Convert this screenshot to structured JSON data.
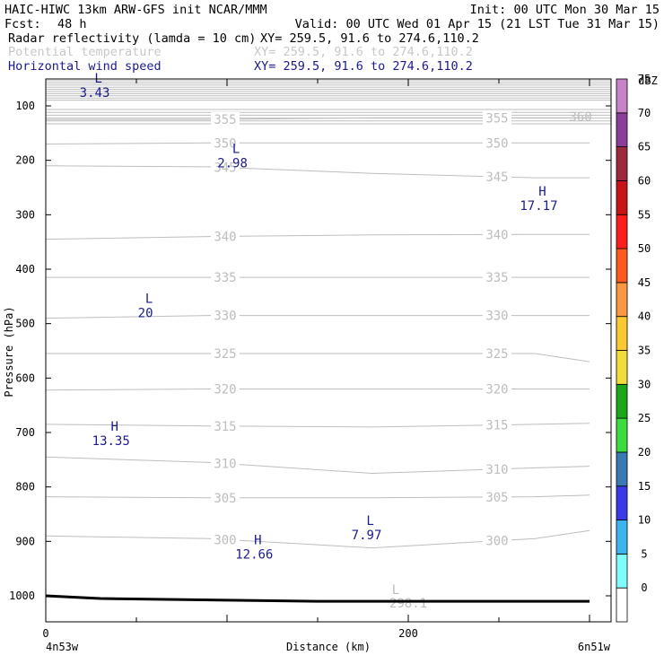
{
  "header": {
    "title_left": "HAIC-HIWC 13km ARW-GFS init   NCAR/MMM",
    "init": "Init: 00 UTC Mon 30 Mar 15",
    "fcst_label": "Fcst:",
    "fcst_value": "48 h",
    "valid": "Valid: 00 UTC Wed 01 Apr 15 (21 LST Tue 31 Mar 15)",
    "fields": [
      {
        "name": "Radar reflectivity (lamda = 10 cm)",
        "xy": "XY= 259.5, 91.6 to 274.6,110.2",
        "color": "#000000"
      },
      {
        "name": "Potential temperature",
        "xy": "XY= 259.5, 91.6 to 274.6,110.2",
        "color": "#c8c8c8"
      },
      {
        "name": "Horizontal wind speed",
        "xy": "XY= 259.5, 91.6 to 274.6,110.2",
        "color": "#1a1a8c"
      }
    ]
  },
  "axes": {
    "ylabel": "Pressure (hPa)",
    "xlabel": "Distance (km)",
    "x_left_label": "4n53w",
    "x_right_label": "6n51w",
    "y_ticks": [
      100,
      200,
      300,
      400,
      500,
      600,
      700,
      800,
      900,
      1000
    ],
    "x_ticks": [
      0,
      200
    ]
  },
  "colorbar": {
    "title": "dBZ",
    "levels": [
      0,
      5,
      10,
      15,
      20,
      25,
      30,
      35,
      40,
      45,
      50,
      55,
      60,
      65,
      70,
      75
    ],
    "colors": [
      "#ffffff",
      "#7ffcfc",
      "#3cb4f0",
      "#3a3ae6",
      "#3a7ab4",
      "#3cdc3c",
      "#1aa81a",
      "#f0dc3c",
      "#fcc832",
      "#fc9640",
      "#fc5a1e",
      "#fc1e1e",
      "#c81414",
      "#a0283c",
      "#8c3c9a",
      "#c882c8"
    ]
  },
  "chart_data": {
    "type": "line",
    "xlim": [
      0,
      300
    ],
    "ylim": [
      1050,
      50
    ],
    "isentropes": [
      {
        "label": "355",
        "x": [
          0,
          90,
          180,
          270,
          300
        ],
        "y": [
          125,
          125,
          122,
          122,
          122
        ]
      },
      {
        "label": "350",
        "x": [
          0,
          90,
          180,
          270,
          300
        ],
        "y": [
          170,
          168,
          168,
          168,
          168
        ]
      },
      {
        "label": "345",
        "x": [
          0,
          90,
          180,
          270,
          300
        ],
        "y": [
          210,
          212,
          224,
          232,
          232
        ]
      },
      {
        "label": "340",
        "x": [
          0,
          90,
          180,
          270,
          300
        ],
        "y": [
          345,
          340,
          337,
          336,
          336
        ]
      },
      {
        "label": "335",
        "x": [
          0,
          90,
          180,
          270,
          300
        ],
        "y": [
          415,
          415,
          415,
          415,
          415
        ]
      },
      {
        "label": "330",
        "x": [
          0,
          90,
          180,
          270,
          300
        ],
        "y": [
          490,
          485,
          485,
          485,
          485
        ]
      },
      {
        "label": "325",
        "x": [
          0,
          90,
          180,
          270,
          300
        ],
        "y": [
          555,
          555,
          555,
          555,
          570
        ]
      },
      {
        "label": "320",
        "x": [
          0,
          90,
          180,
          270,
          300
        ],
        "y": [
          622,
          620,
          620,
          620,
          620
        ]
      },
      {
        "label": "315",
        "x": [
          0,
          90,
          180,
          270,
          300
        ],
        "y": [
          685,
          688,
          690,
          685,
          683
        ]
      },
      {
        "label": "310",
        "x": [
          0,
          90,
          180,
          270,
          300
        ],
        "y": [
          745,
          755,
          775,
          765,
          762
        ]
      },
      {
        "label": "305",
        "x": [
          0,
          90,
          180,
          270,
          300
        ],
        "y": [
          818,
          820,
          820,
          818,
          815
        ]
      },
      {
        "label": "300",
        "x": [
          0,
          90,
          180,
          270,
          300
        ],
        "y": [
          890,
          895,
          912,
          895,
          880
        ]
      }
    ],
    "wind_extrema": [
      {
        "kind": "L",
        "value": "3.43",
        "x": 27,
        "y": 70
      },
      {
        "kind": "L",
        "value": "2.98",
        "x": 103,
        "y": 200
      },
      {
        "kind": "H",
        "value": "17.17",
        "x": 272,
        "y": 278
      },
      {
        "kind": "L",
        "value": "20",
        "x": 55,
        "y": 475
      },
      {
        "kind": "H",
        "value": "13.35",
        "x": 36,
        "y": 710
      },
      {
        "kind": "L",
        "value": "7.97",
        "x": 177,
        "y": 883
      },
      {
        "kind": "H",
        "value": "12.66",
        "x": 115,
        "y": 918
      }
    ],
    "theta_extrema": [
      {
        "kind": "L",
        "value": "298.1",
        "x": 200,
        "y": 1005
      }
    ],
    "terrain": {
      "x": [
        0,
        30,
        100,
        150,
        300
      ],
      "y": [
        1000,
        1005,
        1008,
        1010,
        1010
      ]
    }
  }
}
